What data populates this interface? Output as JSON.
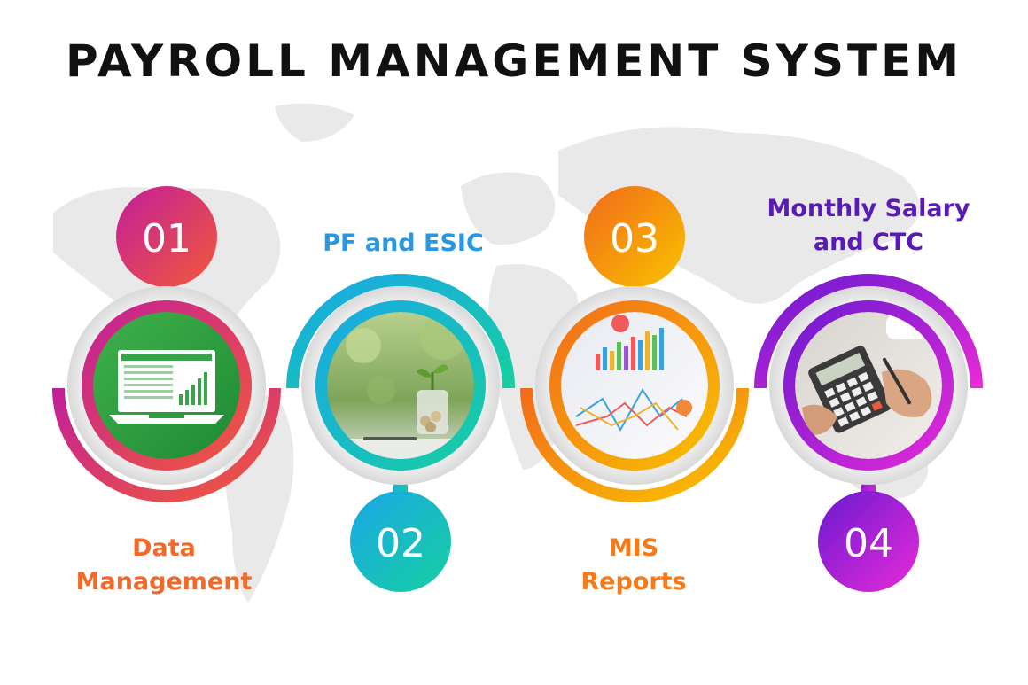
{
  "title": "PAYROLL MANAGEMENT SYSTEM",
  "steps": [
    {
      "number": "01",
      "label_line1": "Data",
      "label_line2": "Management",
      "image": "laptop-spreadsheet-icon",
      "colors": [
        "#c21e9a",
        "#f15a3a"
      ]
    },
    {
      "number": "02",
      "label_line1": "PF and ESIC",
      "label_line2": "",
      "image": "plant-coins-icon",
      "colors": [
        "#1aa8e6",
        "#16cfa0"
      ]
    },
    {
      "number": "03",
      "label_line1": "MIS",
      "label_line2": "Reports",
      "image": "report-charts-icon",
      "colors": [
        "#f26a1a",
        "#f9c300"
      ]
    },
    {
      "number": "04",
      "label_line1": "Monthly Salary",
      "label_line2": "and CTC",
      "image": "calculator-icon",
      "colors": [
        "#6a1ad0",
        "#e82ad8"
      ]
    }
  ]
}
